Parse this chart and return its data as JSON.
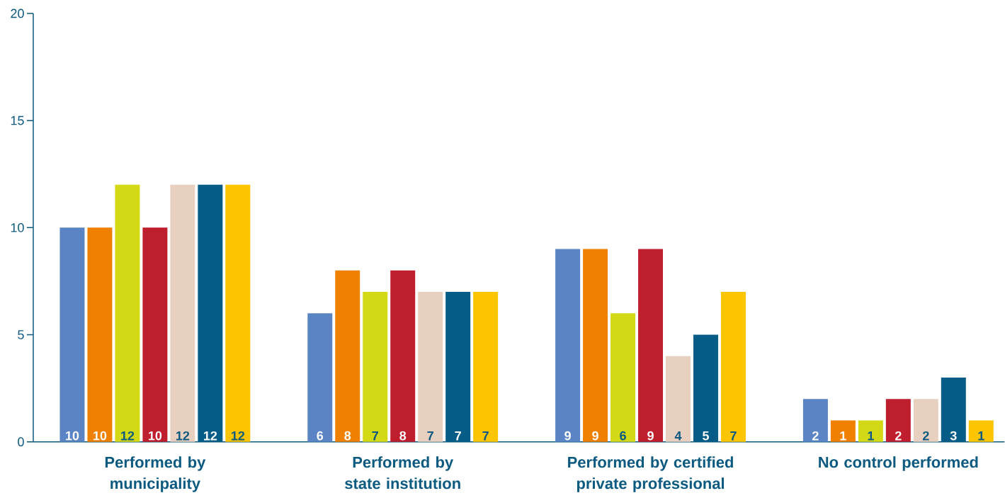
{
  "chart_data": {
    "type": "bar",
    "categories": [
      "Performed by municipality",
      "Performed by state institution",
      "Performed by certified private professional",
      "No control performed"
    ],
    "series": [
      {
        "color": "#5b84c4",
        "values": [
          10,
          6,
          9,
          2
        ]
      },
      {
        "color": "#f08000",
        "values": [
          10,
          8,
          9,
          1
        ]
      },
      {
        "color": "#d4d916",
        "values": [
          12,
          7,
          6,
          1
        ]
      },
      {
        "color": "#be1e2d",
        "values": [
          10,
          8,
          9,
          2
        ]
      },
      {
        "color": "#e8d0c0",
        "values": [
          12,
          7,
          4,
          2
        ]
      },
      {
        "color": "#045c87",
        "values": [
          12,
          7,
          5,
          3
        ]
      },
      {
        "color": "#fcc500",
        "values": [
          12,
          7,
          7,
          1
        ]
      }
    ],
    "ylim": [
      0,
      20
    ],
    "yticks": [
      0,
      5,
      10,
      15,
      20
    ],
    "data_labels": true
  }
}
